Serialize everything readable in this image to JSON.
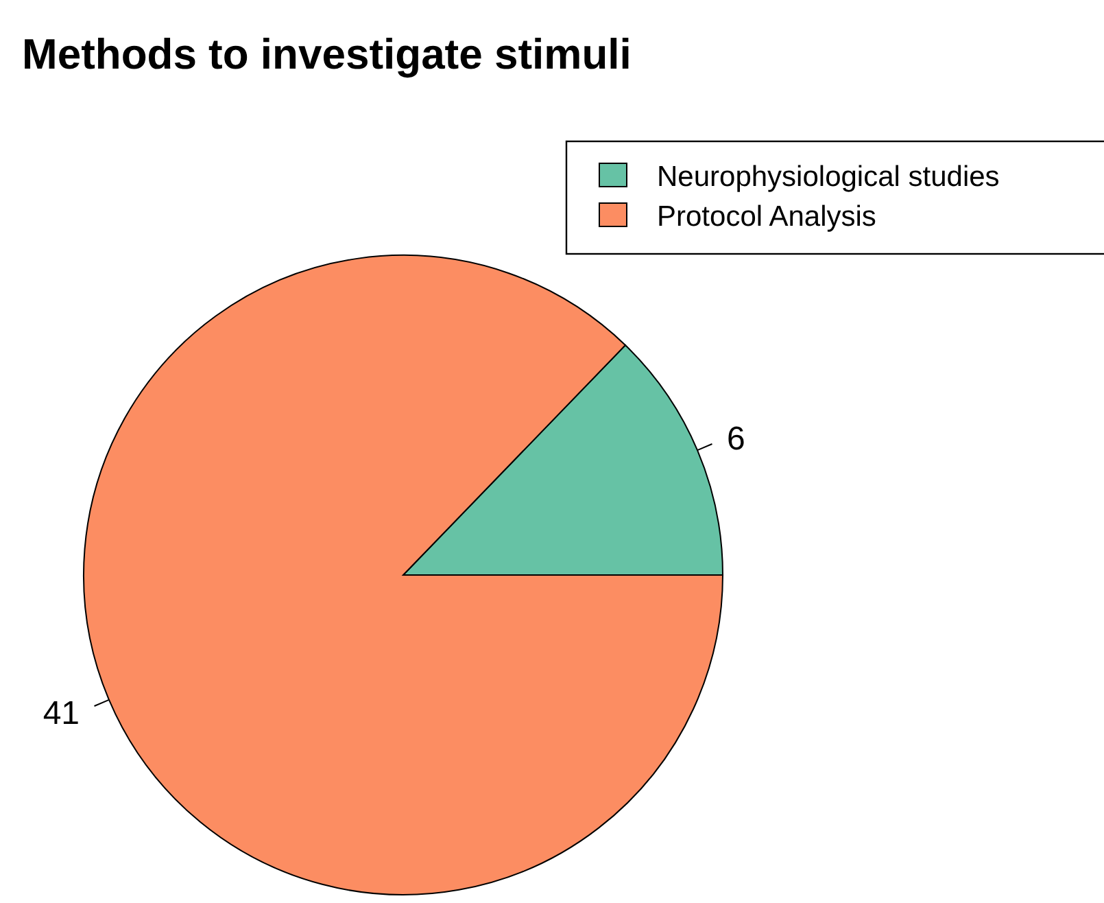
{
  "chart_data": {
    "type": "pie",
    "title": "Methods to investigate stimuli",
    "categories": [
      "Neurophysiological studies",
      "Protocol Analysis"
    ],
    "values": [
      6,
      41
    ],
    "colors": [
      "#66c2a5",
      "#fc8d62"
    ],
    "data_labels": true,
    "legend": "top right"
  }
}
